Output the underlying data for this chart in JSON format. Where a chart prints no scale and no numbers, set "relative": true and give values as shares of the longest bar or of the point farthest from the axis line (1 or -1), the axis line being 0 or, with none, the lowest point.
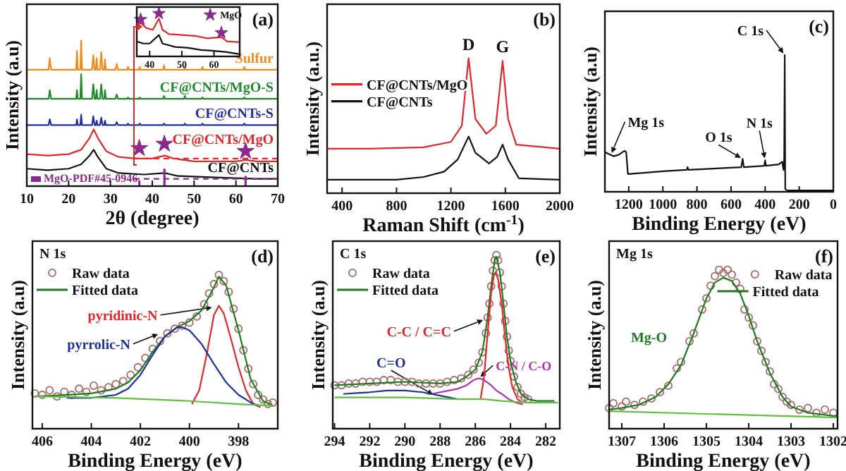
{
  "chart_data": [
    {
      "type": "line",
      "xlabel": "2θ (degree)",
      "ylabel": "Intensity (a.u)",
      "relative": true,
      "xlim": [
        10,
        70
      ],
      "xticks": [
        10,
        20,
        30,
        40,
        50,
        60,
        70
      ],
      "annotations": [
        "(a)"
      ],
      "series": [
        {
          "name": "Sulfur",
          "color": "#f08a1c",
          "x": [
            10,
            15.2,
            15.5,
            15.8,
            20,
            21.8,
            22,
            22.2,
            22.8,
            23,
            23.2,
            25.6,
            25.9,
            26.2,
            26.5,
            26.7,
            26.9,
            27.5,
            27.8,
            28.1,
            28.5,
            28.7,
            28.9,
            31.2,
            31.5,
            31.8,
            34,
            34.2,
            34.4,
            36.8,
            37,
            37.2,
            42.6,
            42.8,
            43,
            47.6,
            47.8,
            48,
            51.8,
            52,
            52.2,
            61.8,
            62,
            62.2,
            70
          ],
          "values": [
            0.8,
            0.8,
            0.88,
            0.8,
            0.8,
            0.8,
            0.93,
            0.8,
            0.8,
            1.0,
            0.8,
            0.8,
            0.9,
            0.8,
            0.8,
            0.88,
            0.8,
            0.8,
            0.92,
            0.8,
            0.8,
            0.87,
            0.8,
            0.8,
            0.84,
            0.8,
            0.8,
            0.82,
            0.8,
            0.8,
            0.82,
            0.8,
            0.8,
            0.83,
            0.8,
            0.8,
            0.82,
            0.8,
            0.8,
            0.82,
            0.8,
            0.8,
            0.82,
            0.8,
            0.8
          ]
        },
        {
          "name": "CF@CNTs/MgO-S",
          "color": "#1e8a2a",
          "x": [
            10,
            15.2,
            15.5,
            15.8,
            20,
            21.8,
            22,
            22.2,
            22.8,
            23,
            23.2,
            25.6,
            25.9,
            26.2,
            26.5,
            26.7,
            26.9,
            27.5,
            27.8,
            28.1,
            28.5,
            28.7,
            28.9,
            31.2,
            31.5,
            31.8,
            34,
            34.2,
            34.4,
            36.8,
            37,
            37.2,
            42.6,
            42.8,
            43,
            47.6,
            47.8,
            48,
            51.8,
            52,
            52.2,
            61.8,
            62,
            62.2,
            70
          ],
          "values": [
            0.6,
            0.6,
            0.66,
            0.6,
            0.6,
            0.6,
            0.66,
            0.6,
            0.6,
            0.77,
            0.6,
            0.6,
            0.7,
            0.6,
            0.6,
            0.66,
            0.6,
            0.6,
            0.7,
            0.6,
            0.6,
            0.66,
            0.6,
            0.6,
            0.63,
            0.6,
            0.6,
            0.61,
            0.6,
            0.6,
            0.61,
            0.6,
            0.6,
            0.62,
            0.6,
            0.6,
            0.62,
            0.6,
            0.6,
            0.61,
            0.6,
            0.6,
            0.61,
            0.6,
            0.6
          ]
        },
        {
          "name": "CF@CNTs-S",
          "color": "#1f2f9e",
          "x": [
            10,
            15.2,
            15.5,
            15.8,
            20,
            21.8,
            22,
            22.2,
            22.8,
            23,
            23.2,
            25.6,
            25.9,
            26.2,
            26.5,
            26.7,
            26.9,
            27.5,
            27.8,
            28.1,
            28.5,
            28.7,
            28.9,
            31.2,
            31.5,
            31.8,
            34,
            34.2,
            34.4,
            36.8,
            37,
            37.2,
            42.6,
            42.8,
            43,
            47.6,
            47.8,
            48,
            51.8,
            52,
            52.2,
            61.8,
            62,
            62.2,
            70
          ],
          "values": [
            0.42,
            0.42,
            0.46,
            0.42,
            0.42,
            0.42,
            0.46,
            0.42,
            0.42,
            0.49,
            0.42,
            0.42,
            0.48,
            0.42,
            0.42,
            0.45,
            0.42,
            0.42,
            0.47,
            0.42,
            0.42,
            0.45,
            0.42,
            0.42,
            0.44,
            0.42,
            0.42,
            0.43,
            0.42,
            0.42,
            0.43,
            0.42,
            0.42,
            0.43,
            0.42,
            0.42,
            0.43,
            0.42,
            0.42,
            0.43,
            0.42,
            0.42,
            0.43,
            0.42,
            0.42
          ]
        },
        {
          "name": "CF@CNTs/MgO",
          "color": "#e3262a",
          "x": [
            10,
            15,
            20,
            23,
            25,
            26,
            27,
            29,
            32,
            36,
            40,
            43,
            45,
            50,
            55,
            60,
            62.3,
            65,
            70
          ],
          "values": [
            0.22,
            0.21,
            0.22,
            0.25,
            0.33,
            0.39,
            0.33,
            0.24,
            0.2,
            0.19,
            0.19,
            0.21,
            0.19,
            0.17,
            0.17,
            0.17,
            0.18,
            0.17,
            0.17
          ]
        },
        {
          "name": "CF@CNTs",
          "color": "#111111",
          "x": [
            10,
            15,
            20,
            23,
            25,
            26,
            27,
            29,
            32,
            38,
            43,
            46,
            55,
            65,
            70
          ],
          "values": [
            0.12,
            0.11,
            0.12,
            0.15,
            0.21,
            0.25,
            0.2,
            0.12,
            0.09,
            0.08,
            0.09,
            0.07,
            0.06,
            0.05,
            0.05
          ]
        },
        {
          "name": "MgO-PDF#45-0946",
          "type": "bar",
          "color": "#8a2a8a",
          "x": [
            36.9,
            42.9,
            62.3
          ],
          "values": [
            0.04,
            0.12,
            0.07
          ]
        },
        {
          "type": "scatter",
          "marker": "star",
          "color": "#8a2a8a",
          "x": [
            36.9,
            42.9,
            62.3
          ],
          "values": [
            0.26,
            0.29,
            0.24
          ]
        },
        {
          "color": "#e3262a",
          "line_style": "dashed",
          "x": [
            35.6,
            70
          ],
          "values": [
            0.19,
            0.19
          ]
        },
        {
          "color": "#8a2a8a",
          "line_style": "dashed",
          "x": [
            35.6,
            70
          ],
          "values": [
            0.05,
            0.05
          ]
        }
      ]
    },
    {
      "type": "line",
      "relative": true,
      "xlim": [
        36,
        68
      ],
      "xticks": [
        40,
        50,
        60
      ],
      "legend": "top right",
      "series": [
        {
          "color": "#e3262a",
          "x": [
            36,
            37.2,
            39,
            41,
            42.9,
            44,
            46,
            50,
            54,
            58,
            62.3,
            64,
            68
          ],
          "values": [
            0.72,
            0.78,
            0.66,
            0.62,
            0.88,
            0.62,
            0.52,
            0.5,
            0.48,
            0.42,
            0.45,
            0.35,
            0.33
          ]
        },
        {
          "color": "#111111",
          "x": [
            36,
            38,
            40,
            42.9,
            44,
            48,
            52,
            56,
            60,
            64,
            68
          ],
          "values": [
            0.35,
            0.3,
            0.3,
            0.5,
            0.3,
            0.22,
            0.2,
            0.15,
            0.13,
            0.1,
            0.05
          ]
        },
        {
          "name": "MgO",
          "type": "scatter",
          "marker": "star",
          "color": "#8a2a8a",
          "x": [
            37.2,
            42.9,
            62.3
          ],
          "values": [
            0.86,
            1.0,
            0.55
          ]
        }
      ]
    },
    {
      "type": "line",
      "xlabel": "Raman Shift (cm$^{-1}$)",
      "ylabel": "Intensity (a.u.)",
      "relative": true,
      "xlim": [
        290,
        2000
      ],
      "xticks": [
        400,
        800,
        1200,
        1600,
        2000
      ],
      "legend": "left",
      "annotations": [
        "(b)",
        {
          "text": "D",
          "x": 1330,
          "y": 1.0
        },
        {
          "text": "G",
          "x": 1580,
          "y": 0.98
        }
      ],
      "series": [
        {
          "name": "CF@CNTs/MgO",
          "color": "#e3262a",
          "x": [
            290,
            600,
            1000,
            1200,
            1280,
            1330,
            1380,
            1460,
            1530,
            1580,
            1620,
            1680,
            2000
          ],
          "values": [
            0.33,
            0.33,
            0.34,
            0.38,
            0.5,
            1.0,
            0.55,
            0.44,
            0.5,
            0.98,
            0.55,
            0.36,
            0.33
          ]
        },
        {
          "name": "CF@CNTs",
          "color": "#111111",
          "x": [
            290,
            800,
            1000,
            1150,
            1250,
            1330,
            1380,
            1480,
            1540,
            1580,
            1620,
            1700,
            2000
          ],
          "values": [
            0.1,
            0.1,
            0.12,
            0.16,
            0.25,
            0.42,
            0.3,
            0.22,
            0.27,
            0.36,
            0.25,
            0.11,
            0.1
          ]
        }
      ]
    },
    {
      "type": "line",
      "xlabel": "Binding Energy (eV)",
      "ylabel": "Intensity (a.u)",
      "relative": true,
      "xlim": [
        1340,
        0
      ],
      "xticks": [
        1200,
        1000,
        800,
        600,
        400,
        200,
        0
      ],
      "annotations": [
        "(c)",
        {
          "text": "C 1s",
          "x": 285,
          "y": 1.0
        },
        {
          "text": "Mg 1s",
          "x": 1305,
          "y": 0.27
        },
        {
          "text": "O 1s",
          "x": 532,
          "y": 0.24
        },
        {
          "text": "N 1s",
          "x": 400,
          "y": 0.23
        }
      ],
      "series": [
        {
          "color": "#111111",
          "x": [
            1340,
            1305,
            1290,
            1260,
            1225,
            1215,
            1205,
            1100,
            1000,
            860,
            855,
            850,
            700,
            540,
            532,
            525,
            405,
            400,
            395,
            320,
            300,
            292,
            288,
            285,
            282,
            270,
            0
          ],
          "values": [
            0.29,
            0.27,
            0.26,
            0.27,
            0.3,
            0.29,
            0.13,
            0.14,
            0.15,
            0.16,
            0.18,
            0.16,
            0.17,
            0.18,
            0.24,
            0.18,
            0.19,
            0.23,
            0.19,
            0.2,
            0.22,
            0.16,
            0.25,
            1.0,
            0.02,
            0.01,
            0.01
          ]
        }
      ]
    },
    {
      "type": "line",
      "xlabel": "Binding Energy (eV)",
      "ylabel": "Intensity (a.u)",
      "relative": true,
      "xlim": [
        406.4,
        396.4
      ],
      "xticks": [
        406,
        404,
        402,
        400,
        398
      ],
      "legend": "top left",
      "annotations": [
        "N 1s",
        "(d)",
        {
          "text": "pyridinic-N",
          "x": 399.0,
          "y": 0.79
        },
        {
          "text": "pyrrolic-N",
          "x": 401.2,
          "y": 0.62
        }
      ],
      "series": [
        {
          "name": "Raw data",
          "type": "scatter",
          "marker": "circle",
          "color": "#a86a6a",
          "x": [
            406.3,
            406.0,
            405.7,
            405.4,
            405.1,
            404.8,
            404.5,
            404.2,
            403.9,
            403.6,
            403.3,
            403.0,
            402.7,
            402.4,
            402.1,
            401.8,
            401.5,
            401.2,
            400.9,
            400.6,
            400.3,
            400.0,
            399.7,
            399.4,
            399.2,
            399.0,
            398.8,
            398.6,
            398.4,
            398.2,
            398.0,
            397.8,
            397.6,
            397.4,
            397.2,
            397.0,
            396.8,
            396.6
          ],
          "values": [
            0.23,
            0.22,
            0.25,
            0.21,
            0.24,
            0.22,
            0.26,
            0.24,
            0.28,
            0.25,
            0.27,
            0.29,
            0.31,
            0.35,
            0.4,
            0.46,
            0.52,
            0.57,
            0.62,
            0.65,
            0.67,
            0.69,
            0.73,
            0.81,
            0.88,
            0.94,
            1.0,
            0.96,
            0.89,
            0.78,
            0.65,
            0.51,
            0.39,
            0.29,
            0.22,
            0.19,
            0.16,
            0.17
          ]
        },
        {
          "name": "Fitted data",
          "color": "#1e7a22",
          "x": [
            406.3,
            405,
            404,
            403,
            402.5,
            402,
            401.5,
            401,
            400.5,
            400,
            399.5,
            399,
            398.8,
            398.5,
            398,
            397.5,
            397,
            396.6
          ],
          "values": [
            0.21,
            0.22,
            0.23,
            0.26,
            0.3,
            0.38,
            0.5,
            0.6,
            0.66,
            0.7,
            0.77,
            0.92,
            0.99,
            0.93,
            0.64,
            0.32,
            0.18,
            0.15
          ]
        },
        {
          "color": "#e3262a",
          "x": [
            399.9,
            399.6,
            399.3,
            399.0,
            398.8,
            398.6,
            398.3,
            398.0,
            397.7,
            397.4,
            397.1
          ],
          "values": [
            0.16,
            0.25,
            0.48,
            0.74,
            0.8,
            0.75,
            0.58,
            0.4,
            0.25,
            0.16,
            0.14
          ]
        },
        {
          "color": "#1f2f9e",
          "x": [
            405,
            404,
            403,
            402.5,
            402,
            401.5,
            401,
            400.5,
            400.3,
            400,
            399.5,
            399,
            398.5,
            398,
            397.5,
            397.2
          ],
          "values": [
            0.2,
            0.2,
            0.22,
            0.26,
            0.35,
            0.48,
            0.6,
            0.66,
            0.66,
            0.64,
            0.55,
            0.42,
            0.3,
            0.22,
            0.17,
            0.15
          ]
        },
        {
          "color": "#5fbf3f",
          "x": [
            406.3,
            403,
            400,
            398,
            396.6
          ],
          "values": [
            0.21,
            0.2,
            0.18,
            0.16,
            0.15
          ]
        }
      ]
    },
    {
      "type": "line",
      "xlabel": "Binding Energy (eV)",
      "ylabel": "Intensity (a.u)",
      "relative": true,
      "xlim": [
        294.1,
        281.2
      ],
      "xticks": [
        294,
        292,
        290,
        288,
        286,
        284,
        282
      ],
      "legend": "top left",
      "annotations": [
        "C 1s",
        "(e)",
        {
          "text": "C-C / C=C",
          "x": 285.45,
          "y": 0.63
        },
        {
          "text": "C-N / C-O",
          "x": 285.8,
          "y": 0.29
        },
        {
          "text": "C=O",
          "x": 288.3,
          "y": 0.19
        }
      ],
      "series": [
        {
          "name": "Raw data",
          "type": "scatter",
          "marker": "circle",
          "color": "#a86a6a",
          "x": [
            294.0,
            293.6,
            293.2,
            292.8,
            292.4,
            292.0,
            291.6,
            291.2,
            290.8,
            290.4,
            290.0,
            289.6,
            289.2,
            288.8,
            288.4,
            288.0,
            287.6,
            287.2,
            286.8,
            286.4,
            286.1,
            285.8,
            285.6,
            285.4,
            285.3,
            285.2,
            285.1,
            285.0,
            284.9,
            284.8,
            284.7,
            284.6,
            284.5,
            284.4,
            284.3,
            284.2,
            284.1,
            284.0,
            283.8,
            283.6,
            283.4,
            283.2,
            283.0
          ],
          "values": [
            0.25,
            0.25,
            0.26,
            0.26,
            0.27,
            0.27,
            0.27,
            0.28,
            0.28,
            0.27,
            0.27,
            0.27,
            0.26,
            0.26,
            0.26,
            0.26,
            0.27,
            0.28,
            0.29,
            0.31,
            0.34,
            0.38,
            0.44,
            0.55,
            0.64,
            0.72,
            0.82,
            0.91,
            0.97,
            1.0,
            0.97,
            0.9,
            0.82,
            0.72,
            0.62,
            0.53,
            0.45,
            0.39,
            0.3,
            0.24,
            0.2,
            0.18,
            0.17
          ]
        },
        {
          "name": "Fitted data",
          "color": "#1e7a22",
          "x": [
            294,
            292,
            290,
            288,
            287,
            286.5,
            286,
            285.6,
            285.3,
            285.1,
            284.9,
            284.8,
            284.6,
            284.4,
            284.2,
            284,
            283.7,
            283.4,
            283,
            282.5,
            281.5
          ],
          "values": [
            0.25,
            0.26,
            0.27,
            0.26,
            0.27,
            0.3,
            0.34,
            0.44,
            0.64,
            0.82,
            0.97,
            0.99,
            0.9,
            0.72,
            0.53,
            0.39,
            0.27,
            0.2,
            0.17,
            0.16,
            0.16
          ]
        },
        {
          "color": "#e3262a",
          "x": [
            285.7,
            285.5,
            285.3,
            285.1,
            284.95,
            284.85,
            284.7,
            284.5,
            284.3,
            284.1,
            283.9,
            283.6,
            283.3
          ],
          "values": [
            0.17,
            0.3,
            0.55,
            0.78,
            0.88,
            0.9,
            0.86,
            0.72,
            0.52,
            0.35,
            0.24,
            0.17,
            0.15
          ]
        },
        {
          "color": "#b030b0",
          "x": [
            288.5,
            287.5,
            287,
            286.5,
            286.1,
            285.8,
            285.5,
            285.1,
            284.8,
            284.5,
            284.1,
            283.7,
            283.3
          ],
          "values": [
            0.2,
            0.22,
            0.23,
            0.25,
            0.28,
            0.29,
            0.28,
            0.25,
            0.22,
            0.2,
            0.17,
            0.15,
            0.14
          ]
        },
        {
          "color": "#1f2f9e",
          "x": [
            293.5,
            292,
            291,
            290,
            289,
            288.5,
            288,
            287.5,
            287
          ],
          "values": [
            0.2,
            0.21,
            0.22,
            0.22,
            0.21,
            0.2,
            0.19,
            0.18,
            0.17
          ]
        },
        {
          "color": "#5fbf3f",
          "x": [
            294,
            290,
            287,
            285.5,
            284.5,
            283,
            281.3
          ],
          "values": [
            0.18,
            0.18,
            0.17,
            0.17,
            0.16,
            0.15,
            0.15
          ]
        }
      ]
    },
    {
      "type": "line",
      "xlabel": "Binding Energy (eV)",
      "ylabel": "Intensity (a.u)",
      "relative": true,
      "xlim": [
        1307.3,
        1301.9
      ],
      "xticks": [
        1307,
        1306,
        1305,
        1304,
        1303,
        1302
      ],
      "legend": "top right",
      "annotations": [
        "Mg 1s",
        "(f)",
        {
          "text": "Mg-O",
          "x": 1305.8,
          "y": 0.42
        }
      ],
      "series": [
        {
          "name": "Raw data",
          "type": "scatter",
          "marker": "circle",
          "color": "#a86a6a",
          "x": [
            1307.3,
            1307.2,
            1307.0,
            1306.9,
            1306.7,
            1306.5,
            1306.3,
            1306.1,
            1305.9,
            1305.7,
            1305.6,
            1305.4,
            1305.3,
            1305.1,
            1305.0,
            1304.9,
            1304.8,
            1304.7,
            1304.6,
            1304.5,
            1304.4,
            1304.3,
            1304.2,
            1304.1,
            1304.0,
            1303.9,
            1303.8,
            1303.7,
            1303.6,
            1303.5,
            1303.4,
            1303.3,
            1303.2,
            1303.1,
            1303.0,
            1302.8,
            1302.6,
            1302.4,
            1302.2,
            1302.0
          ],
          "values": [
            0.13,
            0.16,
            0.14,
            0.17,
            0.15,
            0.17,
            0.19,
            0.23,
            0.27,
            0.38,
            0.42,
            0.55,
            0.6,
            0.75,
            0.82,
            0.9,
            0.96,
            1.0,
            0.98,
            1.0,
            0.97,
            0.92,
            0.88,
            0.75,
            0.7,
            0.65,
            0.55,
            0.49,
            0.42,
            0.36,
            0.28,
            0.25,
            0.2,
            0.17,
            0.15,
            0.12,
            0.13,
            0.1,
            0.12,
            0.1
          ]
        },
        {
          "name": "Fitted data",
          "color": "#1e7a22",
          "x": [
            1307.3,
            1307,
            1306.6,
            1306.2,
            1305.9,
            1305.6,
            1305.3,
            1305,
            1304.8,
            1304.6,
            1304.4,
            1304.2,
            1304,
            1303.8,
            1303.5,
            1303.2,
            1303,
            1302.6,
            1302,
            1301.9
          ],
          "values": [
            0.12,
            0.13,
            0.15,
            0.2,
            0.28,
            0.4,
            0.6,
            0.82,
            0.92,
            0.95,
            0.93,
            0.85,
            0.71,
            0.55,
            0.35,
            0.2,
            0.14,
            0.1,
            0.08,
            0.08
          ]
        },
        {
          "color": "#5fbf3f",
          "x": [
            1307.3,
            1301.9
          ],
          "values": [
            0.11,
            0.07
          ]
        }
      ]
    }
  ]
}
